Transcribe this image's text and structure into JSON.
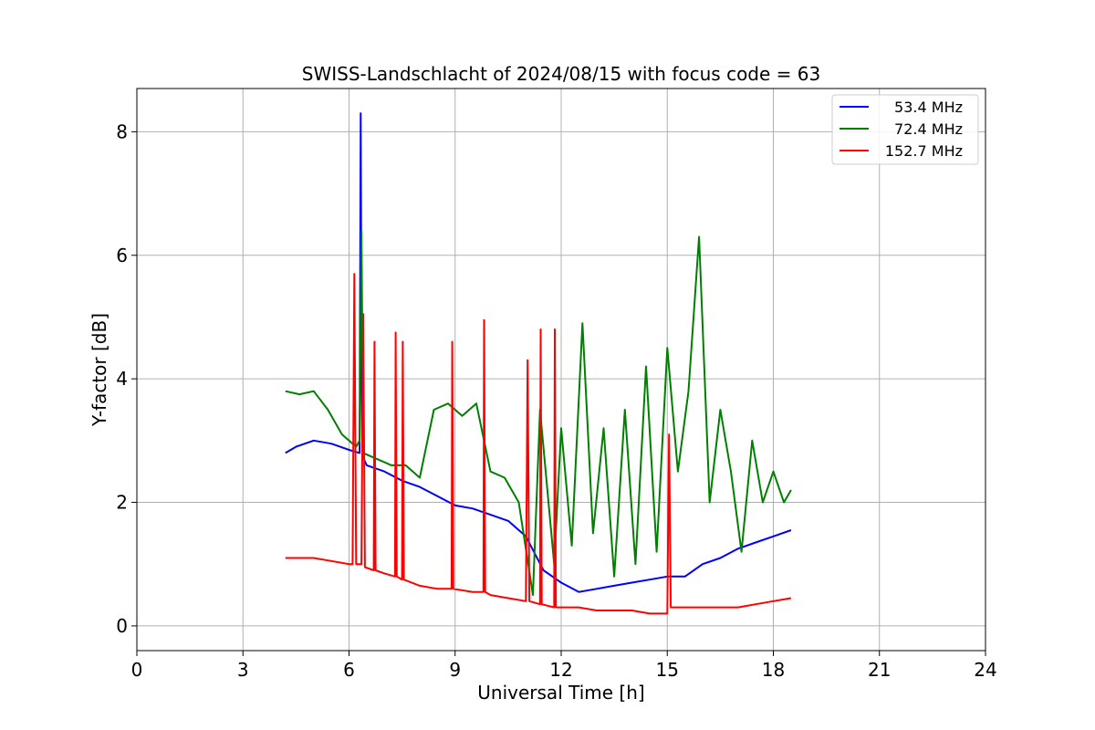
{
  "chart_data": {
    "type": "line",
    "title": "SWISS-Landschlacht of 2024/08/15 with focus code = 63",
    "xlabel": "Universal Time [h]",
    "ylabel": "Y-factor [dB]",
    "xlim": [
      0,
      24
    ],
    "ylim": [
      -0.4,
      8.7
    ],
    "xticks": [
      0,
      3,
      6,
      9,
      12,
      15,
      18,
      21,
      24
    ],
    "yticks": [
      0,
      2,
      4,
      6,
      8
    ],
    "grid": true,
    "legend_position": "top-right",
    "series": [
      {
        "name": "53.4 MHz",
        "color": "#0000ff",
        "x": [
          4.2,
          4.5,
          5.0,
          5.5,
          6.0,
          6.3,
          6.33,
          6.35,
          6.38,
          6.5,
          7.0,
          7.5,
          8.0,
          8.5,
          9.0,
          9.5,
          10.0,
          10.5,
          11.0,
          11.5,
          12.0,
          12.5,
          13.0,
          13.5,
          14.0,
          14.5,
          15.0,
          15.5,
          16.0,
          16.5,
          17.0,
          17.5,
          18.0,
          18.5
        ],
        "y": [
          2.8,
          2.9,
          3.0,
          2.95,
          2.85,
          2.8,
          8.3,
          4.5,
          2.75,
          2.6,
          2.5,
          2.35,
          2.25,
          2.1,
          1.95,
          1.9,
          1.8,
          1.7,
          1.45,
          0.9,
          0.7,
          0.55,
          0.6,
          0.65,
          0.7,
          0.75,
          0.8,
          0.8,
          1.0,
          1.1,
          1.25,
          1.35,
          1.45,
          1.55
        ]
      },
      {
        "name": "72.4 MHz",
        "color": "#008000",
        "x": [
          4.2,
          4.6,
          5.0,
          5.4,
          5.8,
          6.2,
          6.3,
          6.35,
          6.4,
          6.8,
          7.2,
          7.6,
          8.0,
          8.4,
          8.8,
          9.2,
          9.6,
          10.0,
          10.4,
          10.8,
          11.2,
          11.4,
          11.8,
          12.0,
          12.3,
          12.6,
          12.9,
          13.2,
          13.5,
          13.8,
          14.1,
          14.4,
          14.7,
          15.0,
          15.3,
          15.6,
          15.9,
          16.2,
          16.5,
          16.8,
          17.1,
          17.4,
          17.7,
          18.0,
          18.3,
          18.5
        ],
        "y": [
          3.8,
          3.75,
          3.8,
          3.5,
          3.1,
          2.9,
          3.0,
          6.4,
          2.8,
          2.7,
          2.6,
          2.6,
          2.4,
          3.5,
          3.6,
          3.4,
          3.6,
          2.5,
          2.4,
          2.0,
          0.5,
          3.5,
          1.0,
          3.2,
          1.3,
          4.9,
          1.5,
          3.2,
          0.8,
          3.5,
          1.0,
          4.2,
          1.2,
          4.5,
          2.5,
          3.8,
          6.3,
          2.0,
          3.5,
          2.5,
          1.2,
          3.0,
          2.0,
          2.5,
          2.0,
          2.2
        ]
      },
      {
        "name": "152.7 MHz",
        "color": "#ff0000",
        "x": [
          4.2,
          4.5,
          5.0,
          5.5,
          6.0,
          6.1,
          6.15,
          6.2,
          6.35,
          6.4,
          6.45,
          6.7,
          6.72,
          6.75,
          7.0,
          7.3,
          7.32,
          7.35,
          7.5,
          7.52,
          7.55,
          8.0,
          8.5,
          8.9,
          8.92,
          8.95,
          9.5,
          9.8,
          9.82,
          9.85,
          10.0,
          10.5,
          11.0,
          11.05,
          11.1,
          11.4,
          11.42,
          11.45,
          11.8,
          11.82,
          11.85,
          12.0,
          12.5,
          13.0,
          13.5,
          14.0,
          14.5,
          15.0,
          15.05,
          15.1,
          15.5,
          16.0,
          16.5,
          17.0,
          17.5,
          18.0,
          18.5
        ],
        "y": [
          1.1,
          1.1,
          1.1,
          1.05,
          1.0,
          1.0,
          5.7,
          1.0,
          1.0,
          5.05,
          0.95,
          0.9,
          4.6,
          0.9,
          0.85,
          0.8,
          4.75,
          0.8,
          0.75,
          4.6,
          0.75,
          0.65,
          0.6,
          0.6,
          4.6,
          0.6,
          0.55,
          0.55,
          4.95,
          0.55,
          0.5,
          0.45,
          0.4,
          4.3,
          0.4,
          0.35,
          4.8,
          0.35,
          0.3,
          4.8,
          0.3,
          0.3,
          0.3,
          0.25,
          0.25,
          0.25,
          0.2,
          0.2,
          3.1,
          0.3,
          0.3,
          0.3,
          0.3,
          0.3,
          0.35,
          0.4,
          0.45
        ]
      }
    ]
  }
}
